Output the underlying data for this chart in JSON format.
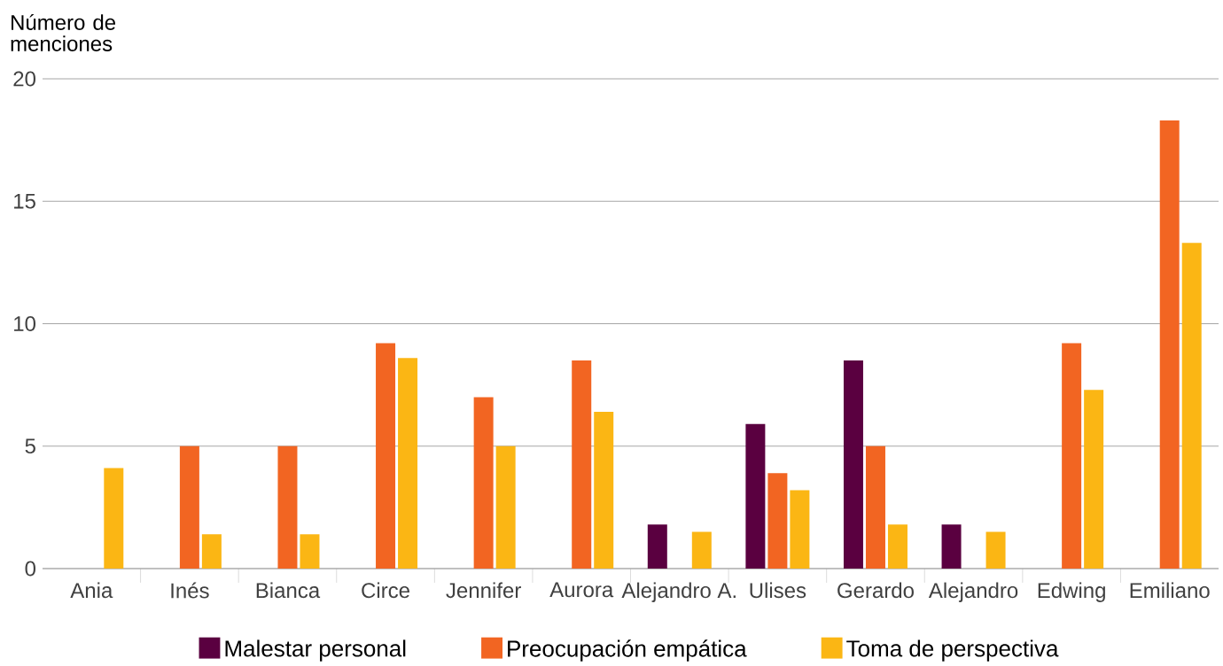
{
  "chart_data": {
    "type": "bar",
    "ylabel": "Número de menciones",
    "categories": [
      "Ania",
      "Inés",
      "Bianca",
      "Circe",
      "Jennifer",
      "Aurora",
      "Alejandro A.",
      "Ulises",
      "Gerardo",
      "Alejandro",
      "Edwing",
      "Emiliano"
    ],
    "series": [
      {
        "name": "Malestar personal",
        "color": "#5a0040",
        "values": [
          0,
          0,
          0,
          0,
          0,
          0,
          1.8,
          5.9,
          8.5,
          1.8,
          0,
          0
        ]
      },
      {
        "name": "Preocupación empática",
        "color": "#f26522",
        "values": [
          0,
          5.0,
          5.0,
          9.2,
          7.0,
          8.5,
          0,
          3.9,
          5.0,
          0,
          9.2,
          18.3
        ]
      },
      {
        "name": "Toma de perspectiva",
        "color": "#fbb614",
        "values": [
          4.1,
          1.4,
          1.4,
          8.6,
          5.0,
          6.4,
          1.5,
          3.2,
          1.8,
          1.5,
          7.3,
          13.3
        ]
      }
    ],
    "ylim": [
      0,
      20
    ],
    "yticks": [
      0,
      5,
      10,
      15,
      20
    ],
    "grid": "y",
    "legend": "bottom"
  }
}
